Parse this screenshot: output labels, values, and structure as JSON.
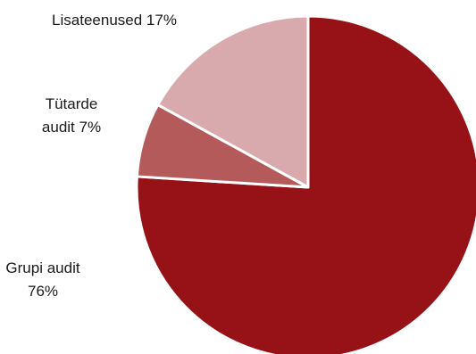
{
  "chart_data": {
    "type": "pie",
    "title": "",
    "slices": [
      {
        "name": "Grupi audit",
        "value": 76,
        "label_lines": [
          "Grupi audit",
          "76%"
        ],
        "color": "#961216"
      },
      {
        "name": "Tütarde audit",
        "value": 7,
        "label_lines": [
          "Tütarde",
          "audit 7%"
        ],
        "color": "#b55a5a"
      },
      {
        "name": "Lisateenused",
        "value": 17,
        "label_lines": [
          "Lisateenused 17%"
        ],
        "color": "#d9aaad"
      }
    ],
    "start_angle_deg": 0,
    "direction": "clockwise",
    "legend": "none",
    "slice_border_color": "#ffffff"
  }
}
